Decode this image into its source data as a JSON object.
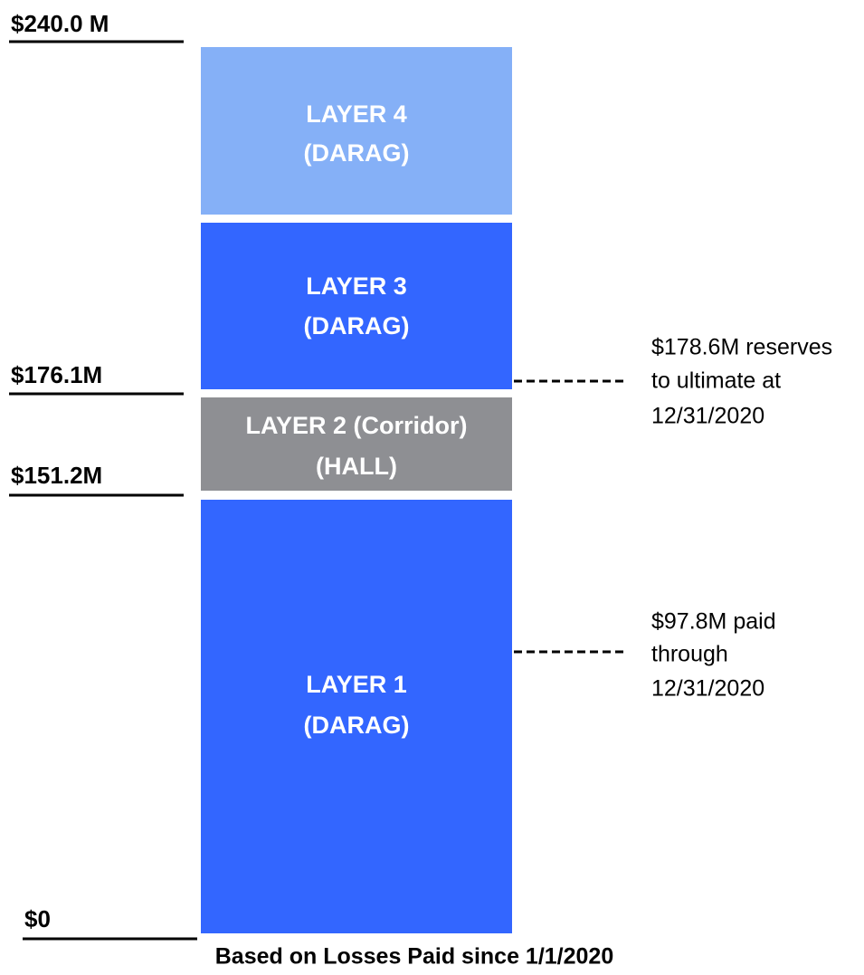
{
  "levels": [
    "$240.0 M",
    "$176.1M",
    "$151.2M",
    "$0"
  ],
  "layers": [
    {
      "name": "LAYER 4",
      "insurer": "(DARAG)"
    },
    {
      "name": "LAYER 3",
      "insurer": "(DARAG)"
    },
    {
      "name": "LAYER 2 (Corridor)",
      "insurer": "(HALL)"
    },
    {
      "name": "LAYER 1",
      "insurer": "(DARAG)"
    }
  ],
  "annotations": [
    [
      "$178.6M reserves",
      "to ultimate at",
      "12/31/2020"
    ],
    [
      "$97.8M paid",
      "through",
      "12/31/2020"
    ]
  ],
  "footer": "Based on Losses Paid since 1/1/2020"
}
